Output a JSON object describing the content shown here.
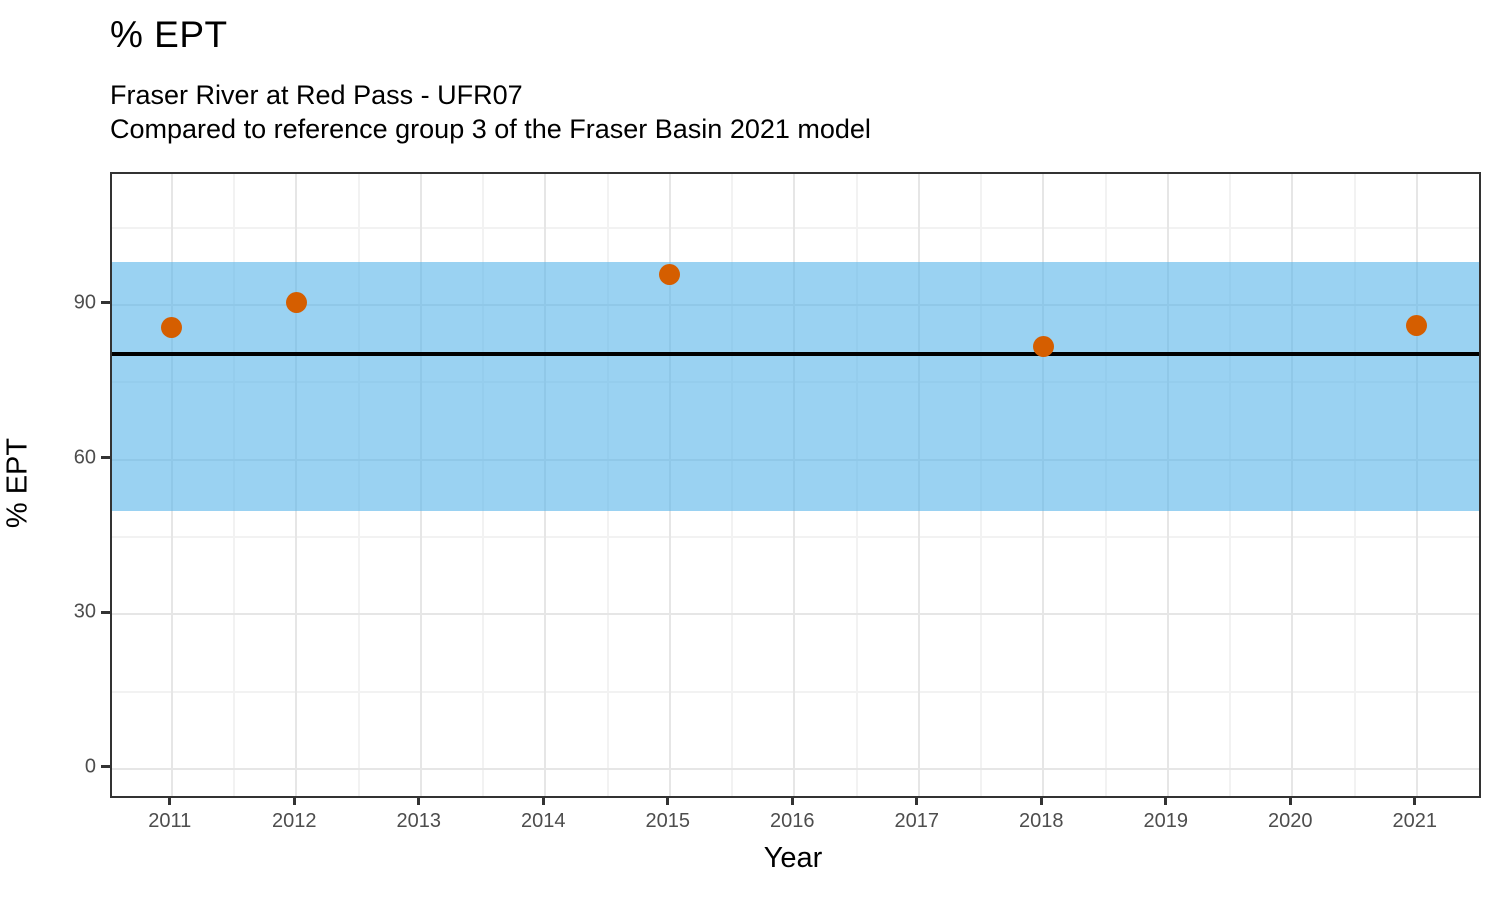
{
  "header": {
    "title": "% EPT",
    "subtitle_line1": "Fraser River at Red Pass - UFR07",
    "subtitle_line2": "Compared to reference group 3 of the Fraser Basin 2021 model"
  },
  "axes": {
    "x_label": "Year",
    "y_label": "% EPT"
  },
  "chart_data": {
    "type": "scatter",
    "title": "% EPT",
    "subtitle": "Fraser River at Red Pass - UFR07 / Compared to reference group 3 of the Fraser Basin 2021 model",
    "xlabel": "Year",
    "ylabel": "% EPT",
    "x": [
      2011,
      2012,
      2015,
      2018,
      2021
    ],
    "y": [
      85.7,
      90.4,
      96.0,
      82.0,
      86.1
    ],
    "x_ticks": [
      2011,
      2012,
      2013,
      2014,
      2015,
      2016,
      2017,
      2018,
      2019,
      2020,
      2021
    ],
    "y_ticks": [
      0,
      30,
      60,
      90
    ],
    "x_minor_ticks": [
      2011.5,
      2012.5,
      2013.5,
      2014.5,
      2015.5,
      2016.5,
      2017.5,
      2018.5,
      2019.5,
      2020.5
    ],
    "y_minor_ticks": [
      15,
      45,
      75,
      105
    ],
    "xlim": [
      2010.52,
      2021.5
    ],
    "ylim": [
      -5.24,
      115.4
    ],
    "grid": true,
    "legend": false,
    "reference_band": {
      "y_min": 50.0,
      "y_max": 98.3,
      "color": "#56B4E9",
      "alpha": 0.6
    },
    "reference_line": {
      "y": 80.5,
      "color": "#000000"
    },
    "point_color": "#D55E00"
  },
  "colors": {
    "band": "#56B4E9",
    "point": "#D55E00",
    "reference_line": "#000000",
    "grid_major": "#E6E6E6",
    "grid_minor": "#F2F2F2",
    "panel_border": "#333333",
    "tick_label": "#4D4D4D"
  }
}
